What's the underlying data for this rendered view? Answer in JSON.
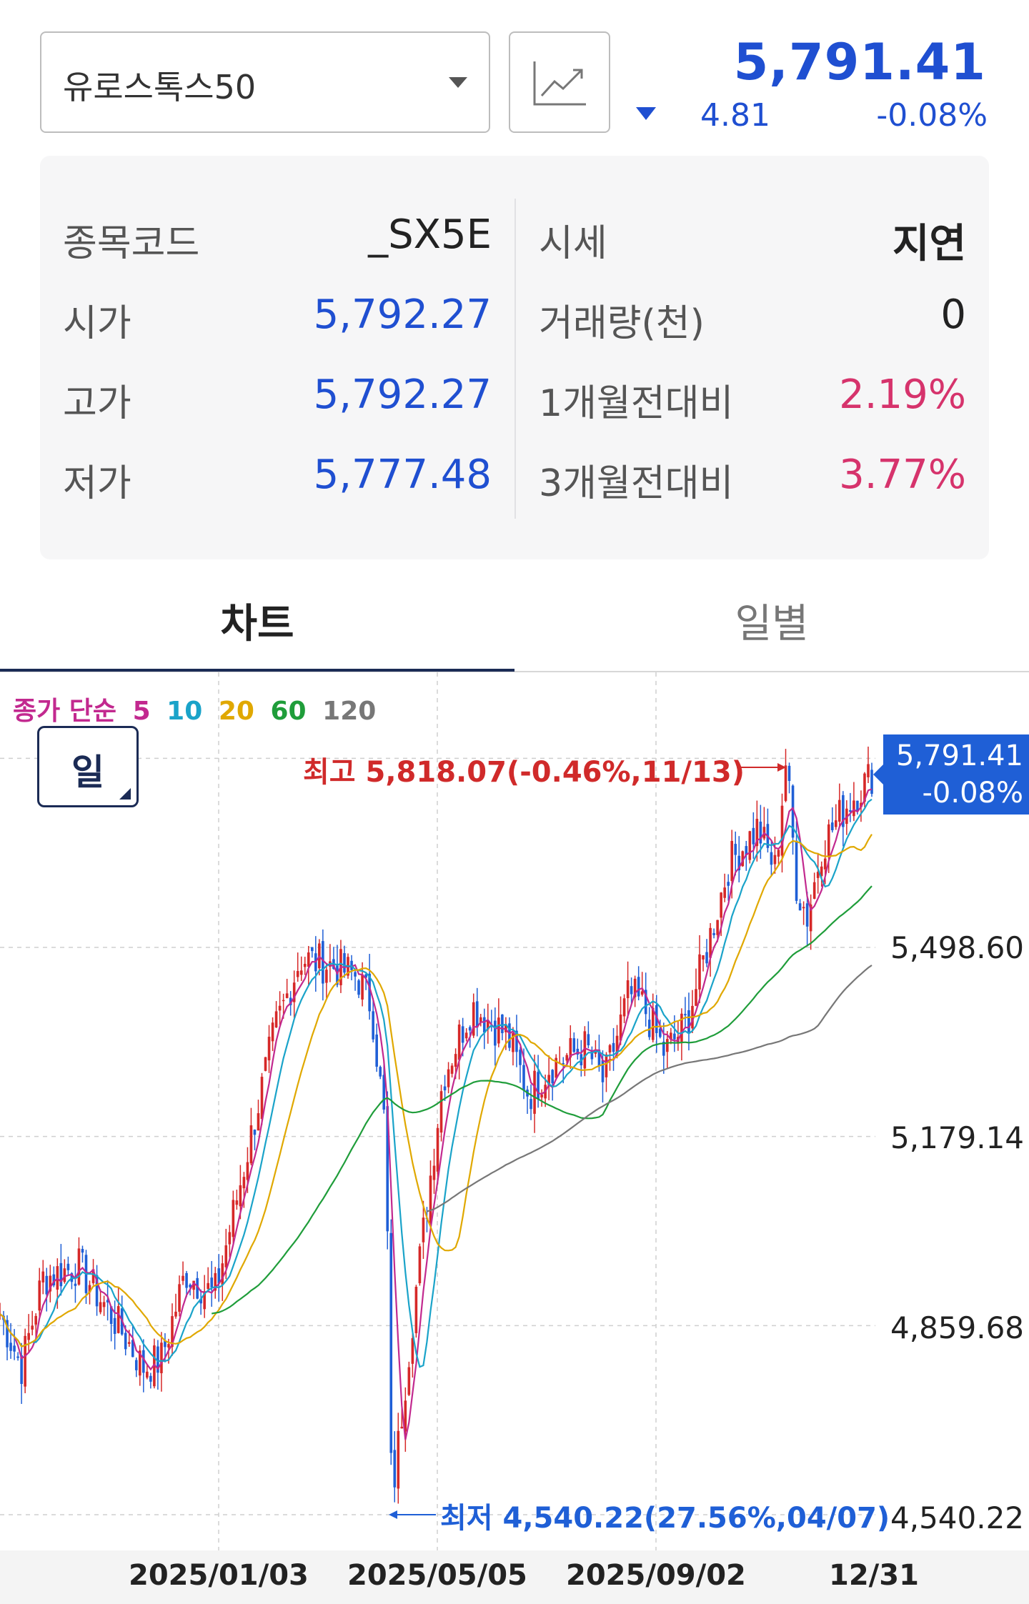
{
  "header": {
    "index_name": "유로스톡스50",
    "price": "5,791.41",
    "change_abs": "4.81",
    "change_pct": "-0.08%",
    "direction": "down"
  },
  "info": {
    "left": [
      {
        "label": "종목코드",
        "value": "_SX5E"
      },
      {
        "label": "시가",
        "value": "5,792.27"
      },
      {
        "label": "고가",
        "value": "5,792.27"
      },
      {
        "label": "저가",
        "value": "5,777.48"
      }
    ],
    "right": [
      {
        "label": "시세",
        "value": "지연"
      },
      {
        "label": "거래량(천)",
        "value": "0"
      },
      {
        "label": "1개월전대비",
        "value": "2.19%"
      },
      {
        "label": "3개월전대비",
        "value": "3.77%"
      }
    ]
  },
  "tabs": [
    {
      "label": "차트",
      "active": true
    },
    {
      "label": "일별",
      "active": false
    }
  ],
  "chart": {
    "legend": {
      "prefix": "종가 단순",
      "periods": [
        {
          "label": "5",
          "color": "#c2298f"
        },
        {
          "label": "10",
          "color": "#1aa3c9"
        },
        {
          "label": "20",
          "color": "#e0a800"
        },
        {
          "label": "60",
          "color": "#1f9d3a"
        },
        {
          "label": "120",
          "color": "#777777"
        }
      ]
    },
    "period_button": "일",
    "current_tag": {
      "price": "5,791.41",
      "pct": "-0.08%"
    },
    "high_annotation": "최고 5,818.07(-0.46%,11/13)",
    "low_annotation": "최저 4,540.22(27.56%,04/07)",
    "y_labels": [
      "5,498.60",
      "5,179.14",
      "4,859.68",
      "4,540.22"
    ],
    "x_labels": [
      "2025/01/03",
      "2025/05/05",
      "2025/09/02",
      "12/31"
    ]
  },
  "chart_data": {
    "type": "line",
    "title": "",
    "y_ticks": [
      5498.6,
      5179.14,
      4859.68,
      4540.22
    ],
    "x_ticks": [
      "2025/01/03",
      "2025/05/05",
      "2025/09/02",
      "12/31"
    ],
    "high": {
      "value": 5818.07,
      "pct": -0.46,
      "date": "11/13"
    },
    "low": {
      "value": 4540.22,
      "pct": 27.56,
      "date": "04/07"
    },
    "last": {
      "value": 5791.41,
      "pct": -0.08
    },
    "colors": {
      "up": "#d62828",
      "down": "#1f5fd6"
    },
    "series": [
      {
        "name": "5",
        "color": "#c2298f"
      },
      {
        "name": "10",
        "color": "#1aa3c9"
      },
      {
        "name": "20",
        "color": "#e0a800"
      },
      {
        "name": "60",
        "color": "#1f9d3a"
      },
      {
        "name": "120",
        "color": "#777777"
      }
    ]
  }
}
